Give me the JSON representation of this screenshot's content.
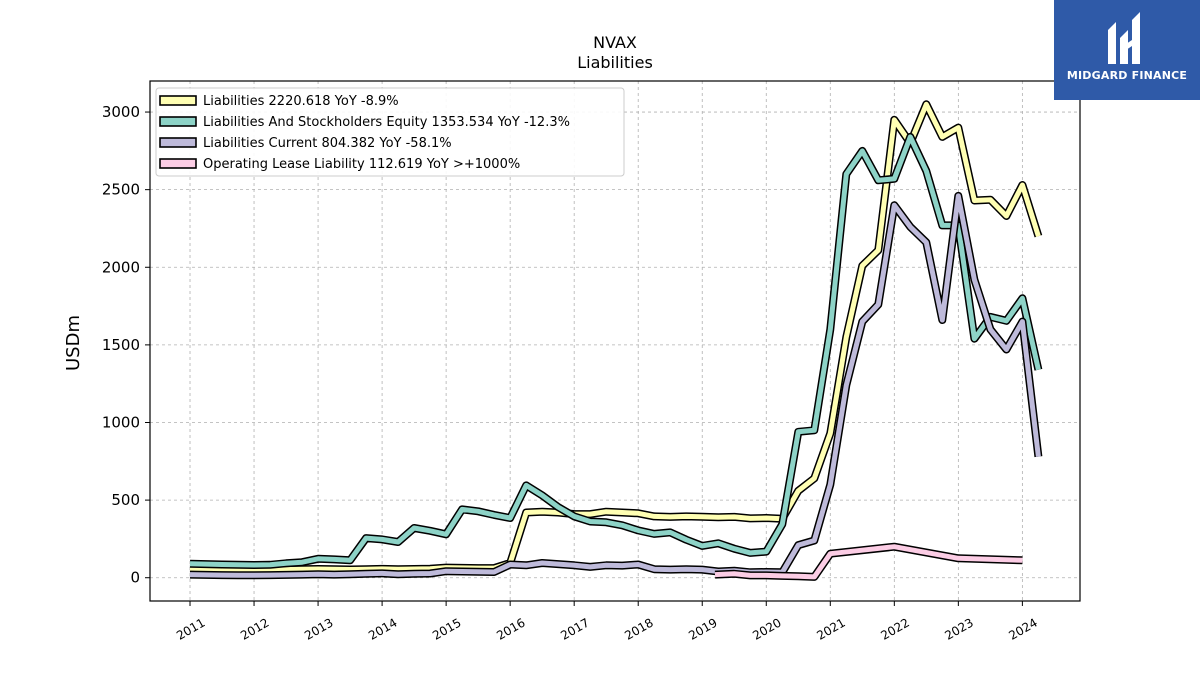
{
  "chart_data": {
    "type": "line",
    "title": "NVAX",
    "subtitle": "Liabilities",
    "ylabel": "USDm",
    "xlabel": "",
    "ylim": [
      -150,
      3200
    ],
    "xlim": [
      2010.375,
      2024.9
    ],
    "grid": true,
    "legend_position": "top-left",
    "yticks": [
      0,
      500,
      1000,
      1500,
      2000,
      2500,
      3000
    ],
    "xticks": [
      2011,
      2012,
      2013,
      2014,
      2015,
      2016,
      2017,
      2018,
      2019,
      2020,
      2021,
      2022,
      2023,
      2024
    ],
    "series": [
      {
        "name": "Liabilities",
        "legend": "Liabilities  2220.618 YoY -8.9%",
        "color": "#ffffb3",
        "points": [
          [
            2011.0,
            60
          ],
          [
            2011.25,
            58
          ],
          [
            2011.5,
            55
          ],
          [
            2011.75,
            52
          ],
          [
            2012.0,
            50
          ],
          [
            2012.25,
            50
          ],
          [
            2012.5,
            52
          ],
          [
            2012.75,
            54
          ],
          [
            2013.0,
            56
          ],
          [
            2013.25,
            55
          ],
          [
            2013.5,
            53
          ],
          [
            2013.75,
            55
          ],
          [
            2014.0,
            57
          ],
          [
            2014.25,
            55
          ],
          [
            2014.5,
            56
          ],
          [
            2014.75,
            58
          ],
          [
            2015.0,
            65
          ],
          [
            2015.25,
            63
          ],
          [
            2015.5,
            62
          ],
          [
            2015.75,
            62
          ],
          [
            2016.0,
            95
          ],
          [
            2016.25,
            420
          ],
          [
            2016.5,
            425
          ],
          [
            2016.75,
            420
          ],
          [
            2017.0,
            410
          ],
          [
            2017.25,
            410
          ],
          [
            2017.5,
            425
          ],
          [
            2017.75,
            420
          ],
          [
            2018.0,
            415
          ],
          [
            2018.25,
            395
          ],
          [
            2018.5,
            392
          ],
          [
            2018.75,
            395
          ],
          [
            2019.0,
            393
          ],
          [
            2019.25,
            390
          ],
          [
            2019.5,
            392
          ],
          [
            2019.75,
            382
          ],
          [
            2020.0,
            385
          ],
          [
            2020.25,
            380
          ],
          [
            2020.5,
            560
          ],
          [
            2020.75,
            640
          ],
          [
            2021.0,
            930
          ],
          [
            2021.25,
            1550
          ],
          [
            2021.5,
            2010
          ],
          [
            2021.75,
            2110
          ],
          [
            2022.0,
            2950
          ],
          [
            2022.25,
            2800
          ],
          [
            2022.5,
            3050
          ],
          [
            2022.75,
            2840
          ],
          [
            2023.0,
            2900
          ],
          [
            2023.25,
            2430
          ],
          [
            2023.5,
            2435
          ],
          [
            2023.75,
            2330
          ],
          [
            2024.0,
            2530
          ],
          [
            2024.25,
            2200
          ]
        ]
      },
      {
        "name": "Liabilities And Stockholders Equity",
        "legend": "Liabilities And Stockholders Equity  1353.534 YoY -12.3%",
        "color": "#8dd3c7",
        "points": [
          [
            2011.0,
            90
          ],
          [
            2011.25,
            88
          ],
          [
            2011.5,
            85
          ],
          [
            2011.75,
            83
          ],
          [
            2012.0,
            82
          ],
          [
            2012.25,
            83
          ],
          [
            2012.5,
            93
          ],
          [
            2012.75,
            100
          ],
          [
            2013.0,
            122
          ],
          [
            2013.25,
            118
          ],
          [
            2013.5,
            112
          ],
          [
            2013.75,
            255
          ],
          [
            2014.0,
            247
          ],
          [
            2014.25,
            230
          ],
          [
            2014.5,
            320
          ],
          [
            2014.75,
            302
          ],
          [
            2015.0,
            280
          ],
          [
            2015.25,
            440
          ],
          [
            2015.5,
            428
          ],
          [
            2015.75,
            405
          ],
          [
            2016.0,
            385
          ],
          [
            2016.25,
            595
          ],
          [
            2016.5,
            530
          ],
          [
            2016.75,
            455
          ],
          [
            2017.0,
            395
          ],
          [
            2017.25,
            362
          ],
          [
            2017.5,
            357
          ],
          [
            2017.75,
            338
          ],
          [
            2018.0,
            305
          ],
          [
            2018.25,
            282
          ],
          [
            2018.5,
            292
          ],
          [
            2018.75,
            245
          ],
          [
            2019.0,
            205
          ],
          [
            2019.25,
            222
          ],
          [
            2019.5,
            187
          ],
          [
            2019.75,
            160
          ],
          [
            2020.0,
            168
          ],
          [
            2020.25,
            345
          ],
          [
            2020.5,
            940
          ],
          [
            2020.75,
            950
          ],
          [
            2021.0,
            1600
          ],
          [
            2021.25,
            2600
          ],
          [
            2021.5,
            2750
          ],
          [
            2021.75,
            2560
          ],
          [
            2022.0,
            2570
          ],
          [
            2022.25,
            2840
          ],
          [
            2022.5,
            2620
          ],
          [
            2022.75,
            2270
          ],
          [
            2023.0,
            2270
          ],
          [
            2023.25,
            1540
          ],
          [
            2023.5,
            1680
          ],
          [
            2023.75,
            1655
          ],
          [
            2024.0,
            1800
          ],
          [
            2024.25,
            1340
          ]
        ]
      },
      {
        "name": "Liabilities Current",
        "legend": "Liabilities Current  804.382 YoY -58.1%",
        "color": "#bebada",
        "points": [
          [
            2011.0,
            20
          ],
          [
            2011.25,
            18
          ],
          [
            2011.5,
            17
          ],
          [
            2011.75,
            16
          ],
          [
            2012.0,
            16
          ],
          [
            2012.25,
            17
          ],
          [
            2012.5,
            18
          ],
          [
            2012.75,
            20
          ],
          [
            2013.0,
            22
          ],
          [
            2013.25,
            20
          ],
          [
            2013.5,
            22
          ],
          [
            2013.75,
            25
          ],
          [
            2014.0,
            28
          ],
          [
            2014.25,
            22
          ],
          [
            2014.5,
            25
          ],
          [
            2014.75,
            27
          ],
          [
            2015.0,
            42
          ],
          [
            2015.25,
            40
          ],
          [
            2015.5,
            38
          ],
          [
            2015.75,
            37
          ],
          [
            2016.0,
            85
          ],
          [
            2016.25,
            80
          ],
          [
            2016.5,
            95
          ],
          [
            2016.75,
            88
          ],
          [
            2017.0,
            80
          ],
          [
            2017.25,
            70
          ],
          [
            2017.5,
            80
          ],
          [
            2017.75,
            78
          ],
          [
            2018.0,
            85
          ],
          [
            2018.25,
            55
          ],
          [
            2018.5,
            52
          ],
          [
            2018.75,
            55
          ],
          [
            2019.0,
            52
          ],
          [
            2019.25,
            40
          ],
          [
            2019.5,
            45
          ],
          [
            2019.75,
            35
          ],
          [
            2020.0,
            37
          ],
          [
            2020.25,
            35
          ],
          [
            2020.5,
            210
          ],
          [
            2020.75,
            240
          ],
          [
            2021.0,
            600
          ],
          [
            2021.25,
            1240
          ],
          [
            2021.5,
            1650
          ],
          [
            2021.75,
            1760
          ],
          [
            2022.0,
            2400
          ],
          [
            2022.25,
            2260
          ],
          [
            2022.5,
            2160
          ],
          [
            2022.75,
            1660
          ],
          [
            2023.0,
            2460
          ],
          [
            2023.25,
            1920
          ],
          [
            2023.5,
            1600
          ],
          [
            2023.75,
            1470
          ],
          [
            2024.0,
            1650
          ],
          [
            2024.25,
            780
          ]
        ]
      },
      {
        "name": "Operating Lease Liability",
        "legend": "Operating Lease Liability  112.619 YoY >+1000%",
        "color": "#fccde5",
        "points": [
          [
            2019.2,
            20
          ],
          [
            2019.5,
            25
          ],
          [
            2019.75,
            15
          ],
          [
            2020.0,
            15
          ],
          [
            2020.25,
            12
          ],
          [
            2020.5,
            10
          ],
          [
            2020.75,
            5
          ],
          [
            2021.0,
            155
          ],
          [
            2022.0,
            200
          ],
          [
            2023.0,
            125
          ],
          [
            2024.0,
            112
          ]
        ]
      }
    ]
  },
  "logo": {
    "text": "MIDGARD FINANCE"
  }
}
